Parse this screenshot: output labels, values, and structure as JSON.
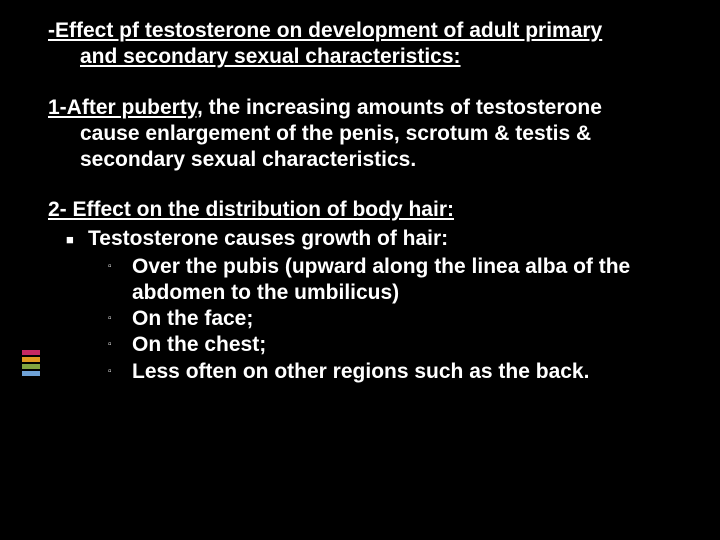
{
  "accent_colors": [
    "#c62862",
    "#e0991f",
    "#83a440",
    "#6fa2d6"
  ],
  "title": {
    "line1": "-Effect pf testosterone on development of adult primary",
    "line2": "and secondary sexual characteristics:"
  },
  "s1": {
    "lead_u": "1-After puberty,",
    "lead_rest": " the increasing amounts of testosterone",
    "cont1": "cause enlargement of the penis, scrotum & testis &",
    "cont2": "secondary sexual characteristics."
  },
  "s2": {
    "head": "2- Effect on the distribution of body hair:",
    "b1": "Testosterone causes growth of hair:",
    "b2a": "Over the pubis (upward along the linea alba of the",
    "b2a2": "abdomen to the umbilicus)",
    "b2b": "On the face;",
    "b2c": "On the chest;",
    "b2d": "Less often on other regions such as the back."
  },
  "markers": {
    "level1": "■",
    "level2": "▫"
  }
}
